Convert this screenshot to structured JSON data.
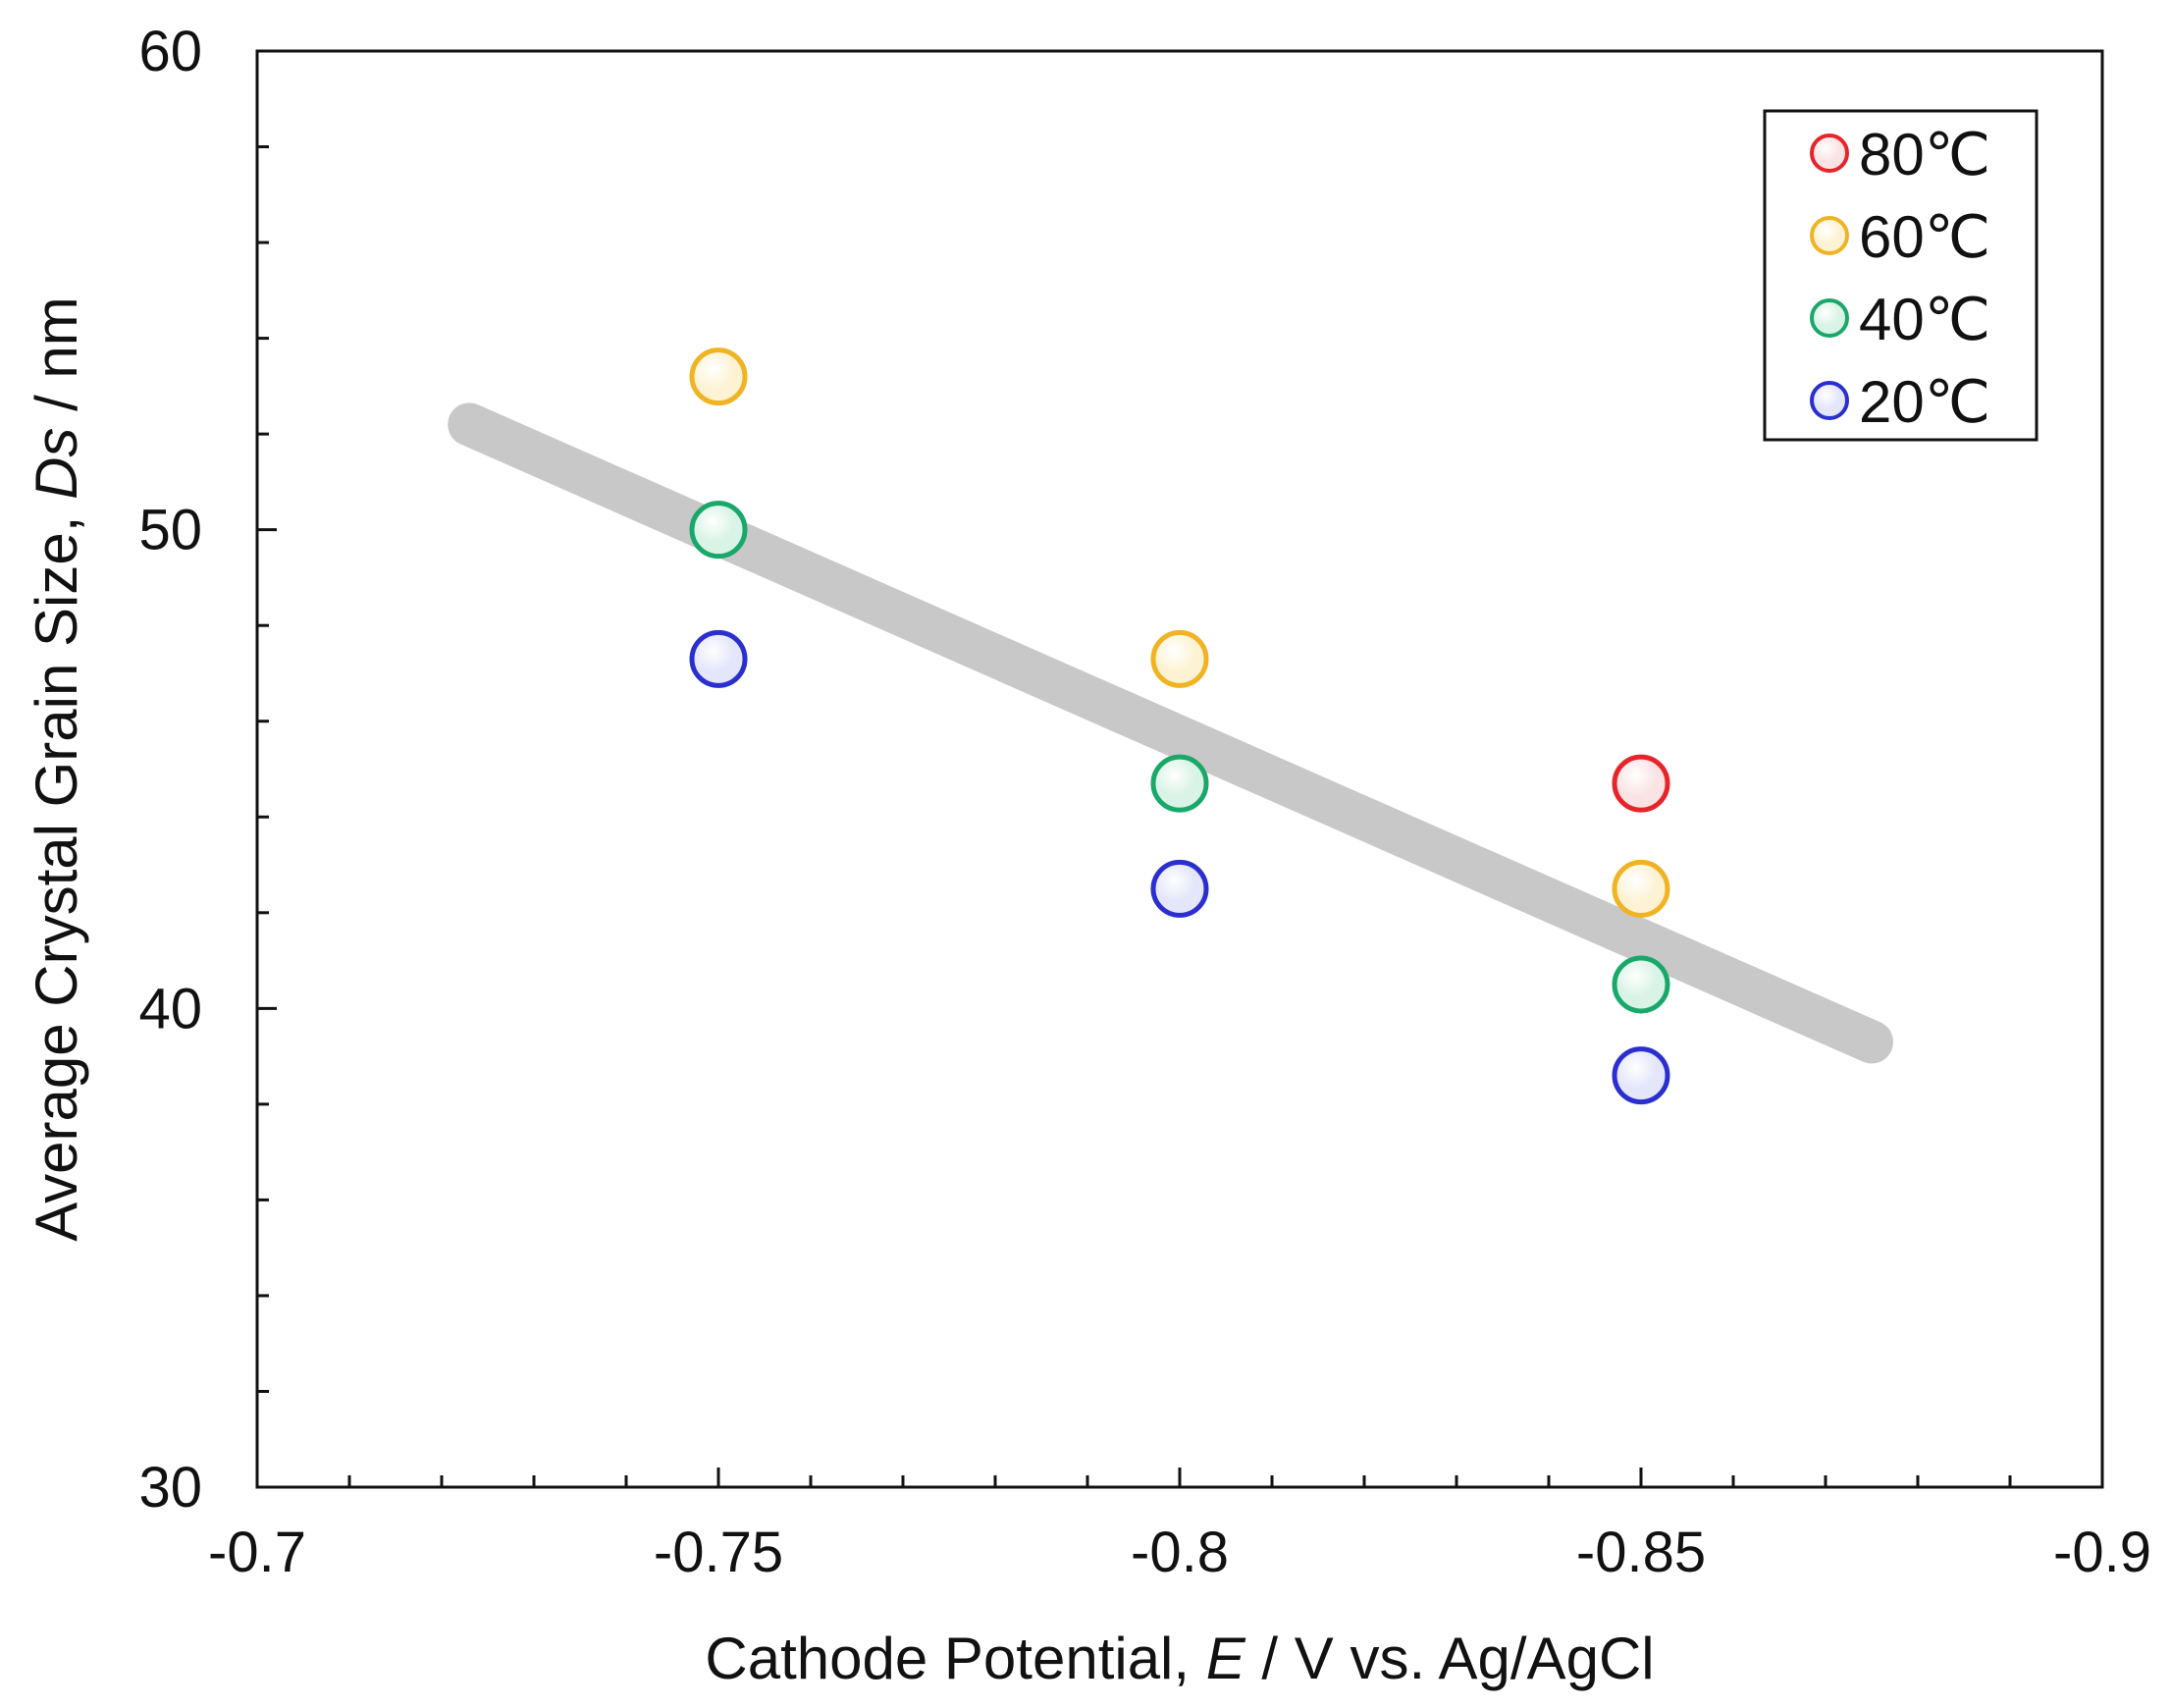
{
  "chart_data": {
    "type": "scatter",
    "title": "",
    "xlabel_parts": [
      "Cathode Potential, ",
      "E",
      " / V vs. Ag/AgCl"
    ],
    "ylabel_parts": [
      "Average Crystal Grain Size, ",
      "Ds",
      " / nm"
    ],
    "xlim": [
      -0.7,
      -0.9
    ],
    "ylim": [
      30,
      60
    ],
    "x_ticks": [
      -0.7,
      -0.75,
      -0.8,
      -0.85,
      -0.9
    ],
    "x_tick_labels": [
      "-0.7",
      "-0.75",
      "-0.8",
      "-0.85",
      "-0.9"
    ],
    "y_ticks": [
      30,
      40,
      50,
      60
    ],
    "y_tick_labels": [
      "30",
      "40",
      "50",
      "60"
    ],
    "x_minor_step": 0.01,
    "y_minor_step": 2,
    "grid": false,
    "legend_position": "top-right",
    "series": [
      {
        "name": "80℃",
        "color": "#e8242b",
        "fill_light": "#fbe3e4",
        "x": [
          -0.85
        ],
        "y": [
          44.7
        ]
      },
      {
        "name": "60℃",
        "color": "#f0b323",
        "fill_light": "#fdf3d4",
        "x": [
          -0.75,
          -0.8,
          -0.85
        ],
        "y": [
          53.2,
          47.3,
          42.5
        ]
      },
      {
        "name": "40℃",
        "color": "#1aa86a",
        "fill_light": "#d9f3e6",
        "x": [
          -0.75,
          -0.8,
          -0.85
        ],
        "y": [
          50.0,
          44.7,
          40.5
        ]
      },
      {
        "name": "20℃",
        "color": "#2b2fd0",
        "fill_light": "#e4e6fb",
        "x": [
          -0.75,
          -0.8,
          -0.85
        ],
        "y": [
          47.3,
          42.5,
          38.6
        ]
      }
    ],
    "trend_line": {
      "color": "#c8c8c8",
      "x": [
        -0.723,
        -0.875
      ],
      "y": [
        52.2,
        39.3
      ]
    }
  }
}
